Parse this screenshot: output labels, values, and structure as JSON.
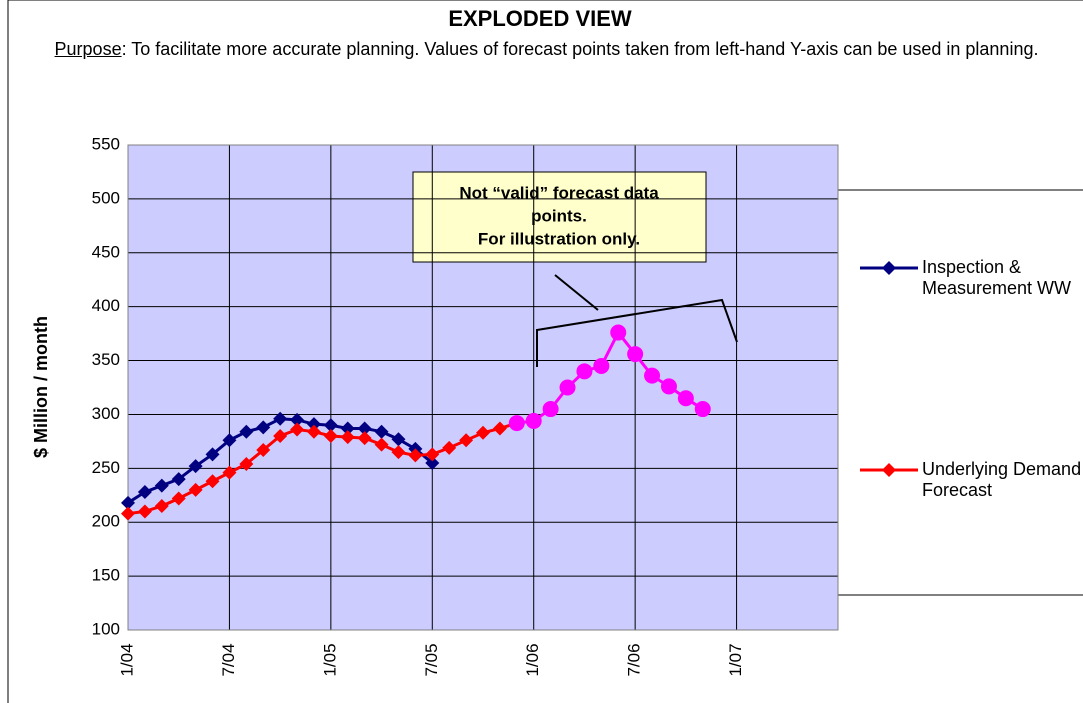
{
  "chart_data": {
    "type": "line",
    "title": "EXPLODED VIEW",
    "subtitle_label": "Purpose",
    "subtitle": ": To facilitate more accurate planning. Values of forecast points taken from left-hand Y-axis can be used in planning.",
    "y_label": "$ Million / month",
    "categories": [
      "1/04",
      null,
      null,
      null,
      null,
      null,
      "7/04",
      null,
      null,
      null,
      null,
      null,
      "1/05",
      null,
      null,
      null,
      null,
      null,
      "7/05",
      null,
      null,
      null,
      null,
      null,
      "1/06",
      null,
      null,
      null,
      null,
      null,
      "7/06",
      null,
      null,
      null,
      null,
      null,
      "1/07",
      null,
      null,
      null,
      null,
      null,
      null
    ],
    "series": [
      {
        "name": "Inspection & Measurement WW",
        "color": "#000080",
        "marker": "diamond",
        "values": [
          218,
          228,
          234,
          240,
          252,
          263,
          276,
          284,
          288,
          296,
          295,
          291,
          290,
          287,
          287,
          284,
          277,
          268,
          255,
          null,
          null,
          null,
          null,
          null,
          null,
          null,
          null,
          null,
          null,
          null,
          null,
          null,
          null,
          null,
          null,
          null,
          null,
          null,
          null,
          null,
          null,
          null,
          null
        ]
      },
      {
        "name": "Underlying Demand Forecast",
        "color": "#ff0000",
        "marker": "diamond",
        "values": [
          208,
          210,
          215,
          222,
          230,
          238,
          246,
          254,
          267,
          280,
          286,
          284,
          280,
          279,
          278,
          272,
          265,
          262,
          263,
          269,
          276,
          283,
          287,
          292,
          null,
          null,
          null,
          null,
          null,
          null,
          null,
          null,
          null,
          null,
          null,
          null,
          null,
          null,
          null,
          null,
          null,
          null,
          null
        ]
      },
      {
        "color": "#ff00ff",
        "marker": "circle",
        "values": [
          null,
          null,
          null,
          null,
          null,
          null,
          null,
          null,
          null,
          null,
          null,
          null,
          null,
          null,
          null,
          null,
          null,
          null,
          null,
          null,
          null,
          null,
          null,
          292,
          294,
          305,
          325,
          340,
          345,
          376,
          356,
          336,
          326,
          315,
          305,
          null,
          null,
          null,
          null,
          null,
          null,
          null,
          null
        ]
      }
    ],
    "annotation": [
      "Not “valid” forecast data",
      "points.",
      "For illustration only."
    ],
    "ylim": [
      100,
      550
    ],
    "yticks": [
      100,
      150,
      200,
      250,
      300,
      350,
      400,
      450,
      500,
      550
    ],
    "grid": true
  }
}
